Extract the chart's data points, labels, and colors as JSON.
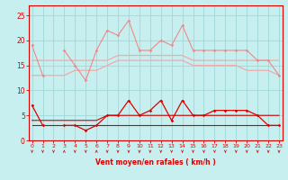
{
  "x": [
    0,
    1,
    2,
    3,
    4,
    5,
    6,
    7,
    8,
    9,
    10,
    11,
    12,
    13,
    14,
    15,
    16,
    17,
    18,
    19,
    20,
    21,
    22,
    23
  ],
  "rafales_spiky": [
    19,
    13,
    null,
    18,
    15,
    12,
    18,
    22,
    21,
    24,
    18,
    18,
    20,
    19,
    23,
    18,
    18,
    18,
    18,
    18,
    18,
    16,
    16,
    13
  ],
  "rafales_smooth1": [
    16,
    16,
    16,
    16,
    16,
    16,
    16,
    16,
    17,
    17,
    17,
    17,
    17,
    17,
    17,
    16,
    16,
    16,
    16,
    16,
    16,
    16,
    16,
    16
  ],
  "rafales_smooth2": [
    13,
    13,
    13,
    13,
    14,
    14,
    14,
    15,
    16,
    16,
    16,
    16,
    16,
    16,
    16,
    15,
    15,
    15,
    15,
    15,
    14,
    14,
    14,
    13
  ],
  "vent_spiky": [
    7,
    3,
    null,
    3,
    3,
    2,
    3,
    5,
    5,
    8,
    5,
    6,
    8,
    4,
    8,
    5,
    5,
    6,
    6,
    6,
    6,
    5,
    3,
    3
  ],
  "vent_smooth1": [
    4,
    4,
    4,
    4,
    4,
    4,
    4,
    5,
    5,
    5,
    5,
    5,
    5,
    5,
    5,
    5,
    5,
    5,
    5,
    5,
    5,
    5,
    5,
    5
  ],
  "vent_smooth2": [
    3,
    3,
    3,
    3,
    3,
    3,
    3,
    3,
    3,
    3,
    3,
    3,
    3,
    3,
    3,
    3,
    3,
    3,
    3,
    3,
    3,
    3,
    3,
    3
  ],
  "wind_dirs": [
    0,
    0,
    0,
    1,
    0,
    0,
    1,
    0,
    0,
    0,
    0,
    0,
    0,
    0,
    0,
    0,
    0,
    0,
    0,
    0,
    0,
    0,
    0,
    0
  ],
  "xlabel": "Vent moyen/en rafales ( km/h )",
  "ylim": [
    0,
    27
  ],
  "yticks": [
    0,
    5,
    10,
    15,
    20,
    25
  ],
  "bg_color": "#c8efef",
  "grid_color": "#a0d8d8",
  "color_salmon_spiky": "#f08888",
  "color_salmon_smooth": "#f0aaaa",
  "color_red": "#dd0000",
  "color_red_smooth": "#cc0000"
}
